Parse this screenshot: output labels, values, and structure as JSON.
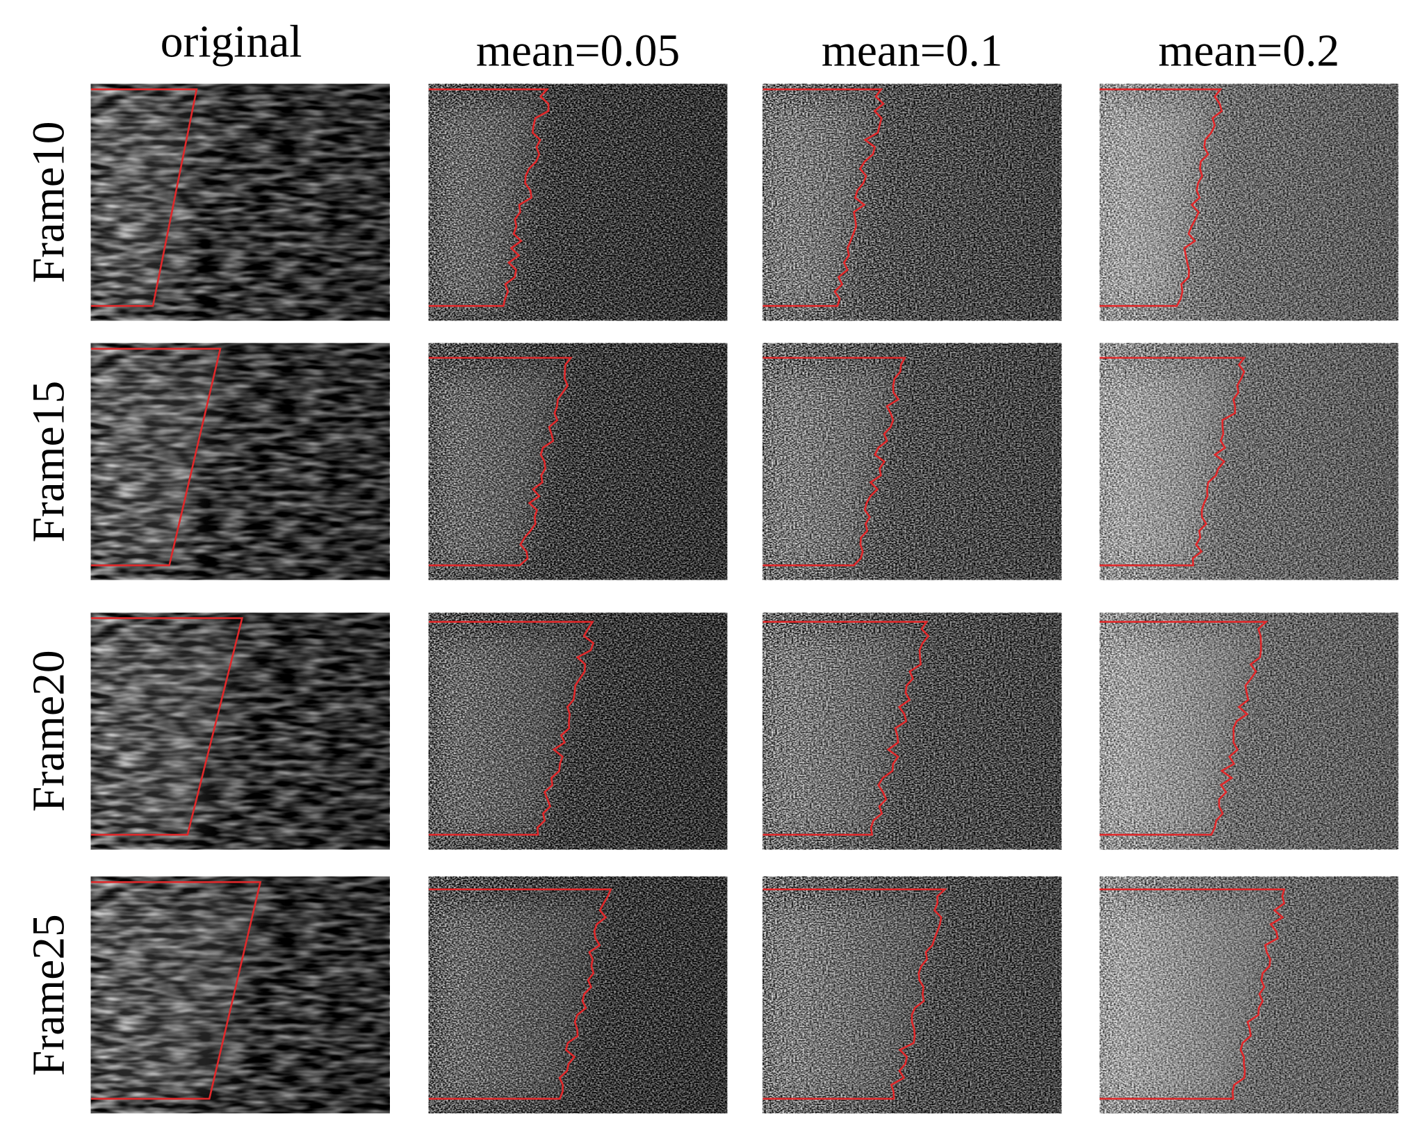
{
  "columns": [
    "original",
    "mean=0.05",
    "mean=0.1",
    "mean=0.2"
  ],
  "rows": [
    "Frame10",
    "Frame15",
    "Frame20",
    "Frame25"
  ]
}
